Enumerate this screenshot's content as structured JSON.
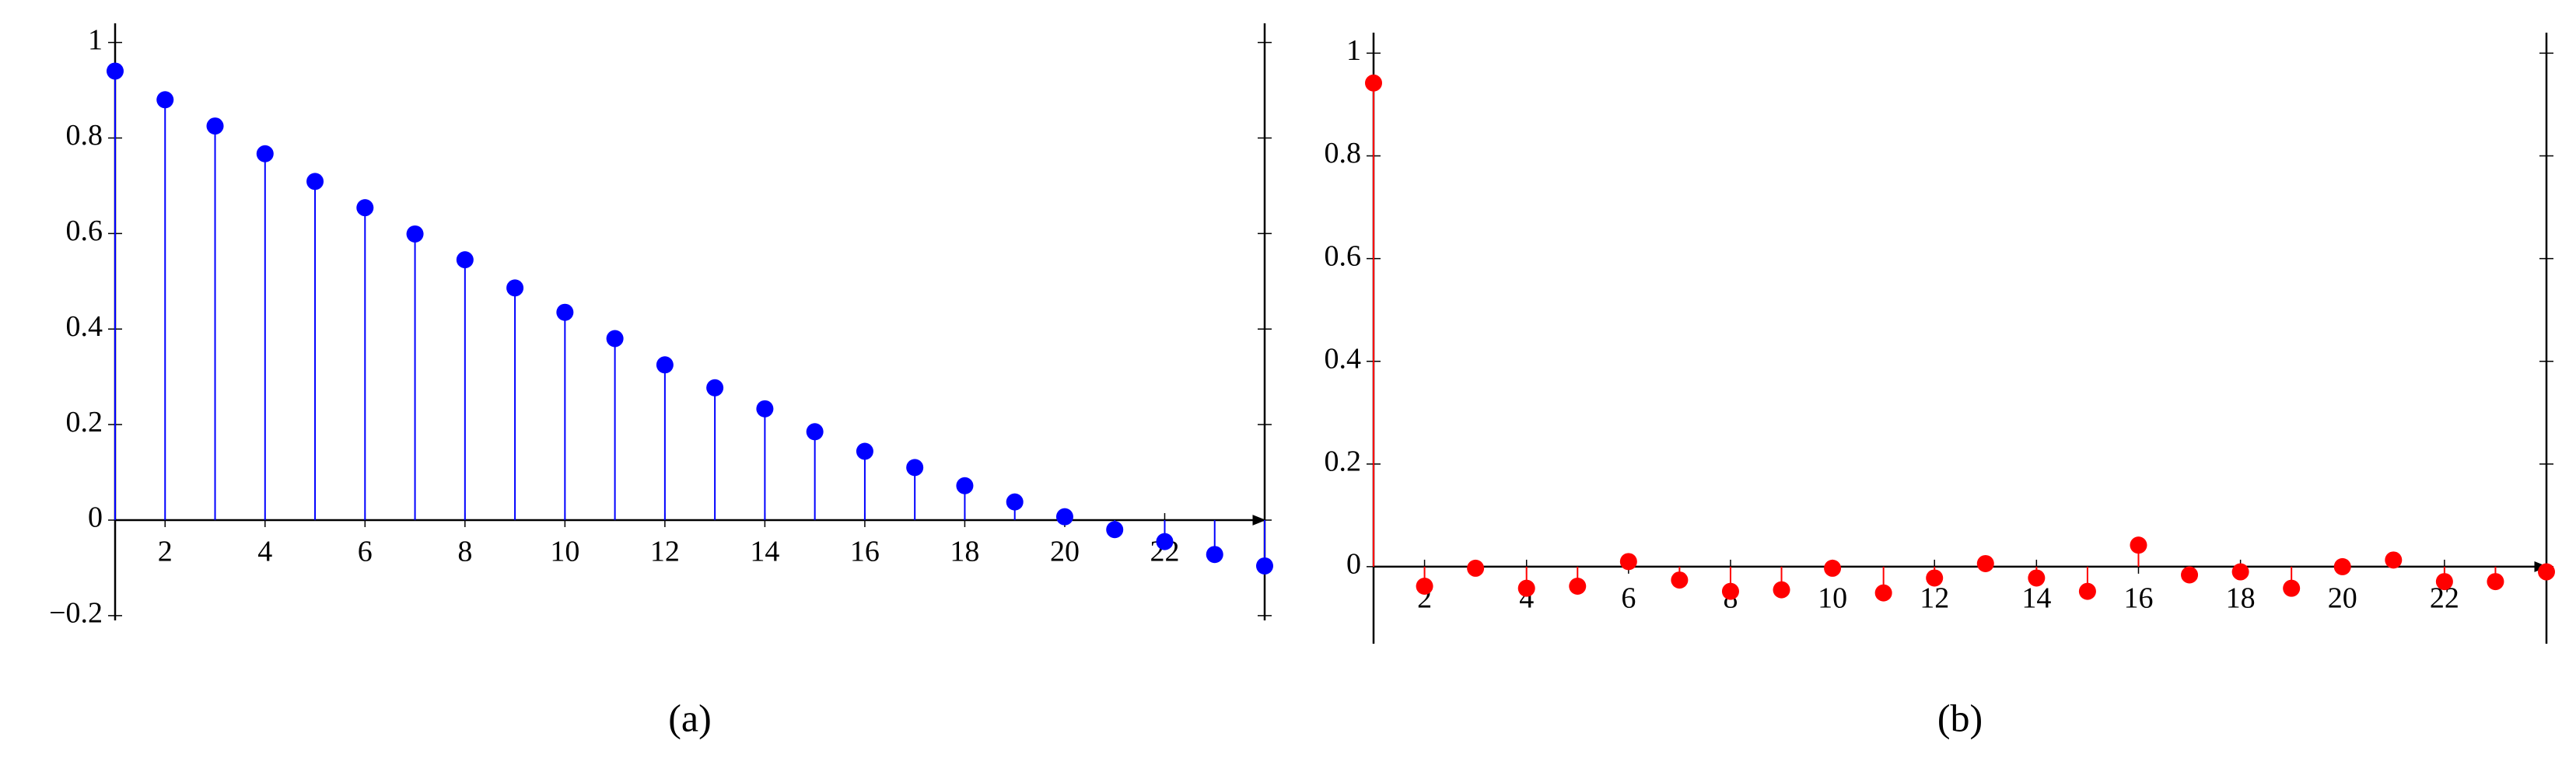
{
  "chart_data": [
    {
      "type": "stem",
      "caption": "(a)",
      "color": "#0000ff",
      "x": [
        1,
        2,
        3,
        4,
        5,
        6,
        7,
        8,
        9,
        10,
        11,
        12,
        13,
        14,
        15,
        16,
        17,
        18,
        19,
        20,
        21,
        22,
        23,
        24
      ],
      "values": [
        0.94,
        0.88,
        0.825,
        0.767,
        0.709,
        0.654,
        0.599,
        0.545,
        0.486,
        0.435,
        0.38,
        0.325,
        0.277,
        0.233,
        0.185,
        0.144,
        0.11,
        0.072,
        0.038,
        0.007,
        -0.02,
        -0.045,
        -0.072,
        -0.096
      ],
      "xlim": [
        1,
        24
      ],
      "ylim": [
        -0.21,
        1.04
      ],
      "xticks": [
        2,
        4,
        6,
        8,
        10,
        12,
        14,
        16,
        18,
        20,
        22
      ],
      "yticks": [
        {
          "value": -0.2,
          "label": "−0.2"
        },
        0,
        0.2,
        0.4,
        0.6,
        0.8,
        1
      ]
    },
    {
      "type": "stem",
      "caption": "(b)",
      "color": "#ff0000",
      "x": [
        1,
        2,
        3,
        4,
        5,
        6,
        7,
        8,
        9,
        10,
        11,
        12,
        13,
        14,
        15,
        16,
        17,
        18,
        19,
        20,
        21,
        22,
        23,
        24
      ],
      "values": [
        0.942,
        -0.038,
        -0.003,
        -0.042,
        -0.038,
        0.01,
        -0.026,
        -0.048,
        -0.045,
        -0.003,
        -0.051,
        -0.022,
        0.006,
        -0.022,
        -0.048,
        0.042,
        -0.016,
        -0.01,
        -0.042,
        0,
        0.013,
        -0.029,
        -0.029,
        -0.01
      ],
      "xlim": [
        1,
        24
      ],
      "ylim": [
        -0.15,
        1.04
      ],
      "xticks": [
        2,
        4,
        6,
        8,
        10,
        12,
        14,
        16,
        18,
        20,
        22
      ],
      "yticks": [
        0,
        0.2,
        0.4,
        0.6,
        0.8,
        1
      ]
    }
  ]
}
